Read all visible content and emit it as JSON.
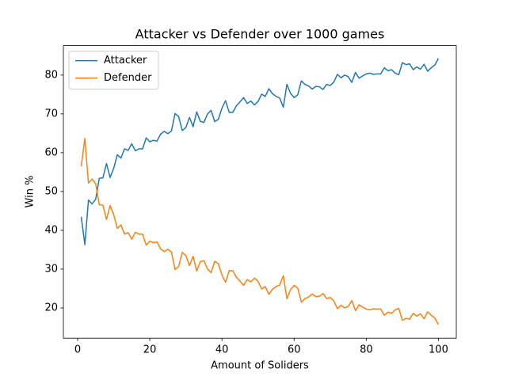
{
  "chart_data": {
    "type": "line",
    "title": "Attacker vs Defender over 1000 games",
    "xlabel": "Amount of Soliders",
    "ylabel": "Win %",
    "x": [
      1,
      2,
      3,
      4,
      5,
      6,
      7,
      8,
      9,
      10,
      11,
      12,
      13,
      14,
      15,
      16,
      17,
      18,
      19,
      20,
      21,
      22,
      23,
      24,
      25,
      26,
      27,
      28,
      29,
      30,
      31,
      32,
      33,
      34,
      35,
      36,
      37,
      38,
      39,
      40,
      41,
      42,
      43,
      44,
      45,
      46,
      47,
      48,
      49,
      50,
      51,
      52,
      53,
      54,
      55,
      56,
      57,
      58,
      59,
      60,
      61,
      62,
      63,
      64,
      65,
      66,
      67,
      68,
      69,
      70,
      71,
      72,
      73,
      74,
      75,
      76,
      77,
      78,
      79,
      80,
      81,
      82,
      83,
      84,
      85,
      86,
      87,
      88,
      89,
      90,
      91,
      92,
      93,
      94,
      95,
      96,
      97,
      98,
      99,
      100
    ],
    "series": [
      {
        "name": "Attacker",
        "color": "#1f77b4",
        "values": [
          43.5,
          36.3,
          47.8,
          46.8,
          48,
          53.4,
          53.5,
          57.2,
          53.6,
          56,
          59.5,
          58.6,
          61,
          60.6,
          62.3,
          60.5,
          61,
          61,
          63.8,
          62.8,
          63.2,
          63,
          64.8,
          65.5,
          64.9,
          65.6,
          70.1,
          69.3,
          65.7,
          66.5,
          69.1,
          66.7,
          70.5,
          68.1,
          67.8,
          70,
          70.9,
          68,
          68.6,
          71.5,
          73.4,
          70.4,
          70.4,
          72.1,
          73.1,
          74.2,
          72.7,
          73.3,
          72.3,
          73.2,
          75.1,
          74.5,
          76.5,
          75.2,
          74.5,
          74.1,
          71.7,
          77.6,
          75.3,
          74.2,
          74.9,
          78.5,
          77.6,
          77.2,
          76.4,
          77.1,
          77,
          76.3,
          77.6,
          77.3,
          78.2,
          80.2,
          79.3,
          80,
          79.6,
          78.1,
          80.7,
          79.2,
          79.8,
          80.3,
          80.5,
          80.2,
          80.3,
          80.3,
          81.9,
          81.1,
          81.4,
          80.5,
          80.1,
          83.2,
          82.7,
          82.9,
          81.4,
          82.1,
          81.5,
          82.8,
          81,
          81.9,
          82.6,
          84.3
        ]
      },
      {
        "name": "Defender",
        "color": "#ff7f0e",
        "values": [
          56.5,
          63.7,
          52.2,
          53.2,
          52,
          46.6,
          46.5,
          42.8,
          46.4,
          44,
          40.5,
          41.4,
          39,
          39.4,
          37.7,
          39.5,
          39,
          39,
          36.2,
          37.2,
          36.8,
          37,
          35.2,
          34.5,
          35.1,
          34.4,
          29.9,
          30.7,
          34.3,
          33.5,
          30.9,
          33.3,
          29.5,
          31.9,
          32.2,
          30,
          29.1,
          32,
          31.4,
          28.5,
          26.6,
          29.6,
          29.6,
          27.9,
          26.9,
          25.8,
          27.3,
          26.7,
          27.7,
          26.8,
          24.9,
          25.5,
          23.5,
          24.8,
          25.5,
          25.9,
          28.3,
          22.4,
          24.7,
          25.8,
          25.1,
          21.5,
          22.4,
          22.8,
          23.6,
          22.9,
          23,
          23.7,
          22.4,
          22.7,
          21.8,
          19.8,
          20.7,
          20,
          20.4,
          21.9,
          19.3,
          20.8,
          20.2,
          19.7,
          19.5,
          19.8,
          19.7,
          19.7,
          18.1,
          18.9,
          18.6,
          19.5,
          19.9,
          16.8,
          17.3,
          17.1,
          18.6,
          17.9,
          18.5,
          17.2,
          19,
          18.1,
          17.4,
          15.7
        ]
      }
    ],
    "xlim": [
      -3.95,
      104.95
    ],
    "xticks": [
      0,
      20,
      40,
      60,
      80,
      100
    ],
    "ylim": [
      12.2,
      87.6
    ],
    "yticks": [
      20,
      30,
      40,
      50,
      60,
      70,
      80
    ],
    "grid": false,
    "legend": "upper left"
  }
}
